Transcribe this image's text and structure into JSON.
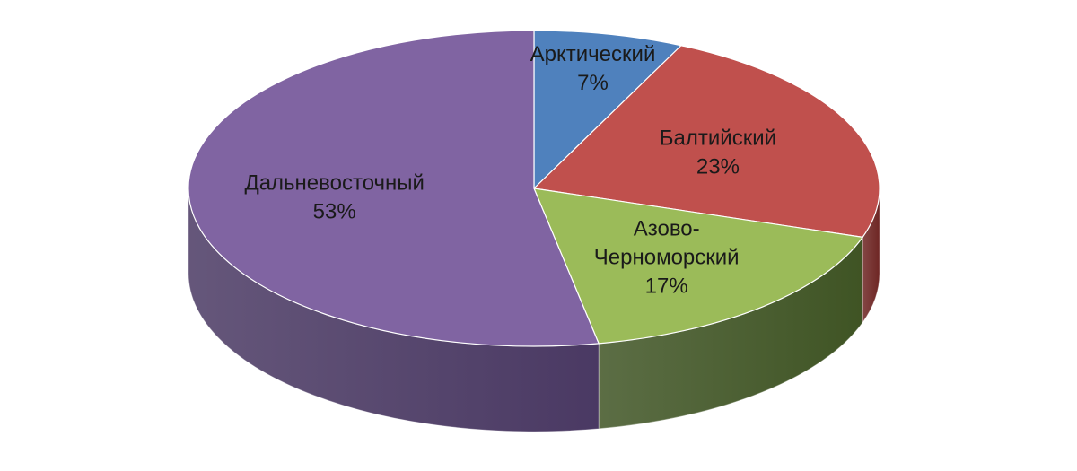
{
  "chart_data": {
    "type": "pie",
    "style": "3d",
    "title": "",
    "start_angle_deg": 0,
    "direction": "clockwise",
    "slices": [
      {
        "label": "Арктический",
        "label_lines": [
          "Арктический"
        ],
        "percent_label": "7%",
        "value": 7,
        "color": "#4f81bd",
        "side_color": "#2c4a70"
      },
      {
        "label": "Балтийский",
        "label_lines": [
          "Балтийский"
        ],
        "percent_label": "23%",
        "value": 23,
        "color": "#c0504d",
        "side_color": "#6e2624"
      },
      {
        "label": "Азово-Черноморский",
        "label_lines": [
          "Азово-",
          "Черноморский"
        ],
        "percent_label": "17%",
        "value": 17,
        "color": "#9bbb59",
        "side_color": "#3f5424"
      },
      {
        "label": "Дальневосточный",
        "label_lines": [
          "Дальневосточный"
        ],
        "percent_label": "53%",
        "value": 53,
        "color": "#8064a2",
        "side_color": "#4a3963"
      }
    ]
  }
}
